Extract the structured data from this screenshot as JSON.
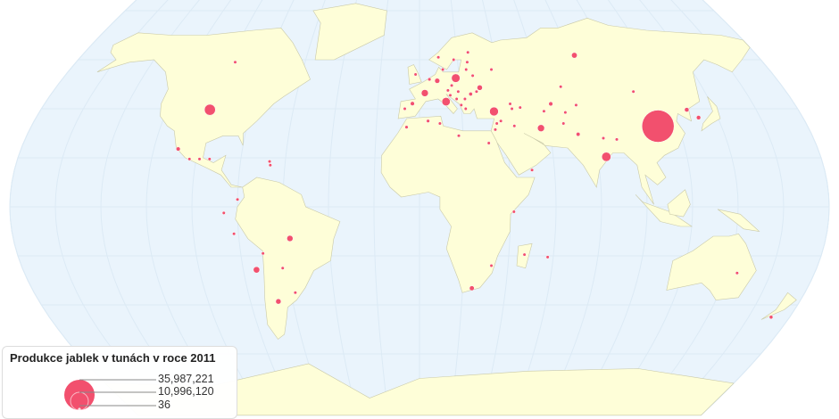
{
  "legend": {
    "title": "Produkce jablek v tunách v roce 2011",
    "values": [
      "35,987,221",
      "10,996,120",
      "36"
    ]
  },
  "colors": {
    "ocean": "#eaf4fc",
    "land": "#fefed8",
    "border": "#c9c9a8",
    "bubble": "#f2506e"
  },
  "chart_data": {
    "type": "bubble-map",
    "title": "Produkce jablek v tunách v roce 2011",
    "max_value": 35987221,
    "points": [
      {
        "lon": 110.6,
        "lat": 32.9,
        "value": 35987221
      },
      {
        "lon": -99.6,
        "lat": 39.6,
        "value": 4200000
      },
      {
        "lon": 83.8,
        "lat": 20.4,
        "value": 2900000
      },
      {
        "lon": 35.3,
        "lat": 38.9,
        "value": 2700000
      },
      {
        "lon": 18.3,
        "lat": 52.5,
        "value": 2500000
      },
      {
        "lon": 12.8,
        "lat": 42.9,
        "value": 2400000
      },
      {
        "lon": 56.2,
        "lat": 32.1,
        "value": 1700000
      },
      {
        "lon": 2.6,
        "lat": 46.4,
        "value": 1700000
      },
      {
        "lon": -74,
        "lat": -25.7,
        "value": 1400000
      },
      {
        "lon": -57.4,
        "lat": -12.9,
        "value": 1300000
      },
      {
        "lon": 82.6,
        "lat": 61.8,
        "value": 1100000
      },
      {
        "lon": -66.8,
        "lat": -38.6,
        "value": 1000000
      },
      {
        "lon": 29.8,
        "lat": 48.6,
        "value": 1000000
      },
      {
        "lon": 8.9,
        "lat": 51.4,
        "value": 900000
      },
      {
        "lon": 24.3,
        "lat": -33.2,
        "value": 800000
      },
      {
        "lon": 131,
        "lat": 36.4,
        "value": 650000
      },
      {
        "lon": 127,
        "lat": 39.6,
        "value": 700000
      },
      {
        "lon": -3.4,
        "lat": 42.1,
        "value": 600000
      },
      {
        "lon": -109,
        "lat": 23.6,
        "value": 600000
      },
      {
        "lon": 63,
        "lat": 42,
        "value": 600000
      },
      {
        "lon": 171,
        "lat": -45,
        "value": 450000
      },
      {
        "lon": 144.7,
        "lat": -27,
        "value": 300000
      },
      {
        "lon": 72.8,
        "lat": 29.6,
        "value": 550000
      },
      {
        "lon": 31.5,
        "lat": 26,
        "value": 250000
      },
      {
        "lon": -6,
        "lat": 32.5,
        "value": 400000
      },
      {
        "lon": -96.6,
        "lat": 59,
        "value": 350000
      },
      {
        "lon": -7,
        "lat": 40,
        "value": 250000
      },
      {
        "lon": -2,
        "lat": 54,
        "value": 220000
      },
      {
        "lon": 5,
        "lat": 52,
        "value": 400000
      },
      {
        "lon": 16,
        "lat": 49.5,
        "value": 150000
      },
      {
        "lon": 14,
        "lat": 47.5,
        "value": 200000
      },
      {
        "lon": 19,
        "lat": 47,
        "value": 300000
      },
      {
        "lon": 25,
        "lat": 46,
        "value": 500000
      },
      {
        "lon": 22,
        "lat": 44,
        "value": 250000
      },
      {
        "lon": 28,
        "lat": 47,
        "value": 300000
      },
      {
        "lon": 27,
        "lat": 53.5,
        "value": 250000
      },
      {
        "lon": 37,
        "lat": 56,
        "value": 300000
      },
      {
        "lon": 24,
        "lat": 56,
        "value": 50000
      },
      {
        "lon": 25,
        "lat": 59,
        "value": 30000
      },
      {
        "lon": 18,
        "lat": 60,
        "value": 30000
      },
      {
        "lon": 10,
        "lat": 61,
        "value": 30000
      },
      {
        "lon": 26,
        "lat": 63,
        "value": 10000
      },
      {
        "lon": 12,
        "lat": 56,
        "value": 30000
      },
      {
        "lon": 22,
        "lat": 40,
        "value": 280000
      },
      {
        "lon": 20,
        "lat": 41.5,
        "value": 80000
      },
      {
        "lon": 15,
        "lat": 45.5,
        "value": 60000
      },
      {
        "lon": 18,
        "lat": 44,
        "value": 80000
      },
      {
        "lon": 44,
        "lat": 40,
        "value": 60000
      },
      {
        "lon": 43.5,
        "lat": 42,
        "value": 60000
      },
      {
        "lon": 48,
        "lat": 40.5,
        "value": 200000
      },
      {
        "lon": 36,
        "lat": 34,
        "value": 150000
      },
      {
        "lon": 35,
        "lat": 31.5,
        "value": 100000
      },
      {
        "lon": 38,
        "lat": 35,
        "value": 300000
      },
      {
        "lon": 44,
        "lat": 33,
        "value": 80000
      },
      {
        "lon": 67,
        "lat": 34,
        "value": 40000
      },
      {
        "lon": 69,
        "lat": 38.5,
        "value": 150000
      },
      {
        "lon": 75,
        "lat": 41.5,
        "value": 120000
      },
      {
        "lon": 70,
        "lat": 49,
        "value": 130000
      },
      {
        "lon": 59,
        "lat": 39,
        "value": 50000
      },
      {
        "lon": 84,
        "lat": 28,
        "value": 30000
      },
      {
        "lon": 90,
        "lat": 27.5,
        "value": 6000
      },
      {
        "lon": 105,
        "lat": 47,
        "value": 500
      },
      {
        "lon": 4,
        "lat": 35,
        "value": 400000
      },
      {
        "lon": 9.5,
        "lat": 34,
        "value": 100000
      },
      {
        "lon": 18,
        "lat": 29,
        "value": 40000
      },
      {
        "lon": 50,
        "lat": 15,
        "value": 20000
      },
      {
        "lon": 41.5,
        "lat": -2,
        "value": 20000
      },
      {
        "lon": 32.5,
        "lat": -24,
        "value": 10000
      },
      {
        "lon": 47,
        "lat": -19.5,
        "value": 8000
      },
      {
        "lon": 57.5,
        "lat": -20.5,
        "value": 100
      },
      {
        "lon": -103,
        "lat": 19.5,
        "value": 8000
      },
      {
        "lon": -98.5,
        "lat": 19.5,
        "value": 6000
      },
      {
        "lon": -94,
        "lat": 19.5,
        "value": 5000
      },
      {
        "lon": -67,
        "lat": 18.5,
        "value": 100
      },
      {
        "lon": -66.5,
        "lat": 17,
        "value": 100
      },
      {
        "lon": -80,
        "lat": 3,
        "value": 5000
      },
      {
        "lon": -86,
        "lat": -2.5,
        "value": 30000
      },
      {
        "lon": -82,
        "lat": -11,
        "value": 150000
      },
      {
        "lon": -70,
        "lat": -19,
        "value": 20000
      },
      {
        "lon": -62,
        "lat": -25,
        "value": 5000
      },
      {
        "lon": -58,
        "lat": -35,
        "value": 60000
      }
    ]
  }
}
